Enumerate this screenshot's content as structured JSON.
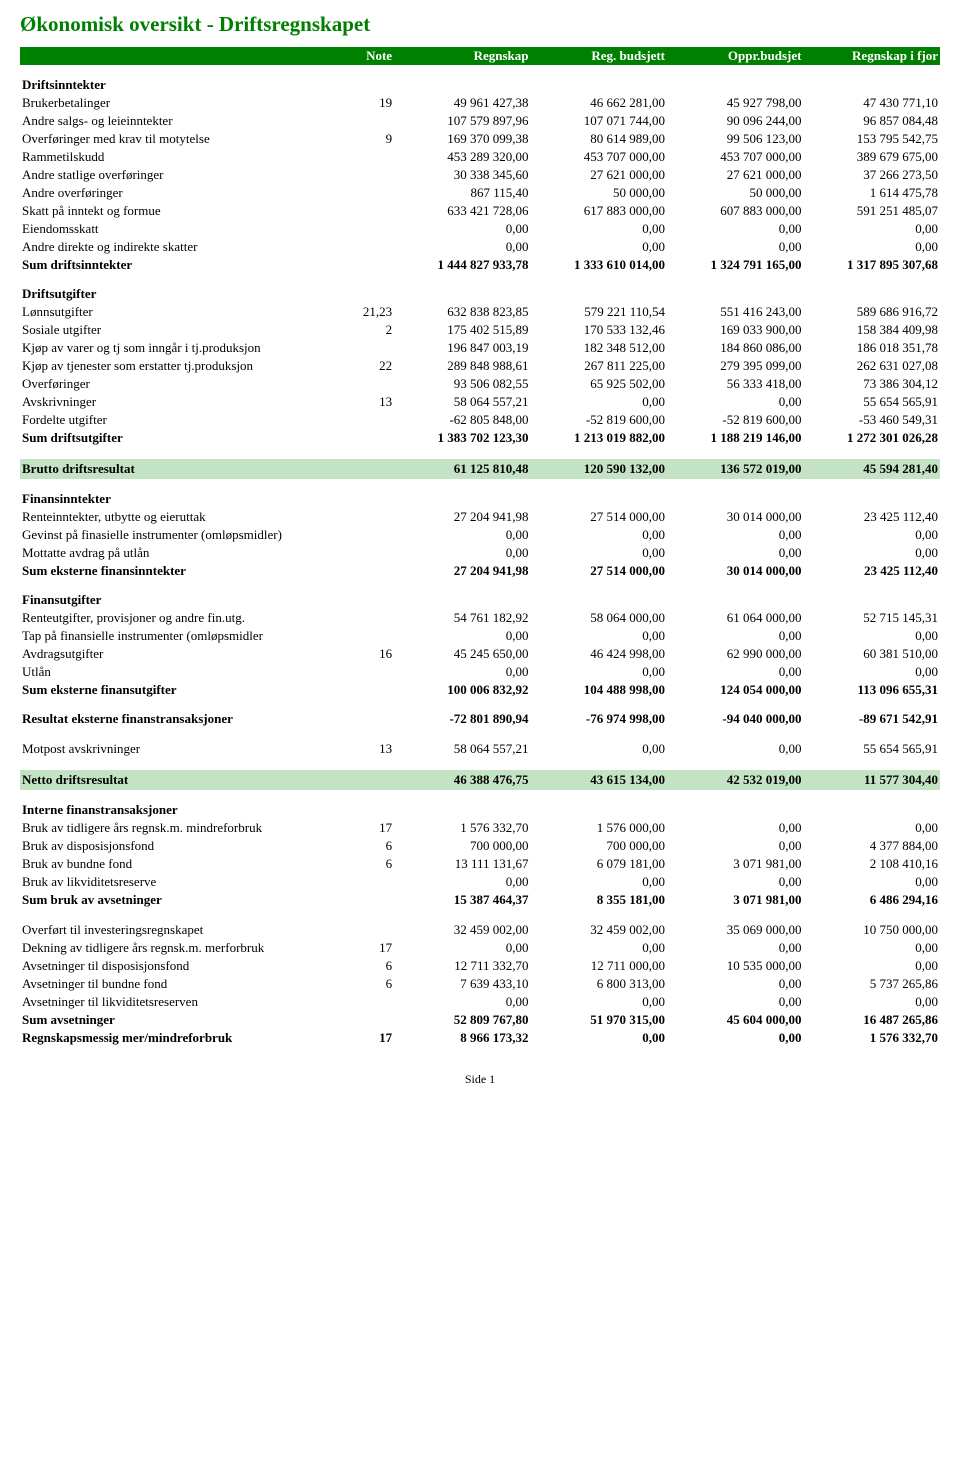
{
  "title": "Økonomisk oversikt - Driftsregnskapet",
  "headers": {
    "note": "Note",
    "c1": "Regnskap",
    "c2": "Reg. budsjett",
    "c3": "Oppr.budsjet",
    "c4": "Regnskap i fjor"
  },
  "colors": {
    "title": "#008000",
    "header_bg": "#008000",
    "header_fg": "#ffffff",
    "highlight_bg": "#c4e2c4"
  },
  "rows": [
    {
      "type": "section",
      "label": "Driftsinntekter"
    },
    {
      "label": "Brukerbetalinger",
      "note": "19",
      "v": [
        "49 961 427,38",
        "46 662 281,00",
        "45 927 798,00",
        "47 430 771,10"
      ]
    },
    {
      "label": "Andre salgs- og leieinntekter",
      "v": [
        "107 579 897,96",
        "107 071 744,00",
        "90 096 244,00",
        "96 857 084,48"
      ]
    },
    {
      "label": "Overføringer med krav til motytelse",
      "note": "9",
      "v": [
        "169 370 099,38",
        "80 614 989,00",
        "99 506 123,00",
        "153 795 542,75"
      ]
    },
    {
      "label": "Rammetilskudd",
      "v": [
        "453 289 320,00",
        "453 707 000,00",
        "453 707 000,00",
        "389 679 675,00"
      ]
    },
    {
      "label": "Andre statlige overføringer",
      "v": [
        "30 338 345,60",
        "27 621 000,00",
        "27 621 000,00",
        "37 266 273,50"
      ]
    },
    {
      "label": "Andre overføringer",
      "v": [
        "867 115,40",
        "50 000,00",
        "50 000,00",
        "1 614 475,78"
      ]
    },
    {
      "label": "Skatt på inntekt og formue",
      "v": [
        "633 421 728,06",
        "617 883 000,00",
        "607 883 000,00",
        "591 251 485,07"
      ]
    },
    {
      "label": "Eiendomsskatt",
      "v": [
        "0,00",
        "0,00",
        "0,00",
        "0,00"
      ]
    },
    {
      "label": "Andre direkte og indirekte skatter",
      "v": [
        "0,00",
        "0,00",
        "0,00",
        "0,00"
      ]
    },
    {
      "type": "bold",
      "label": "Sum driftsinntekter",
      "v": [
        "1 444 827 933,78",
        "1 333 610 014,00",
        "1 324 791 165,00",
        "1 317 895 307,68"
      ]
    },
    {
      "type": "section",
      "label": "Driftsutgifter"
    },
    {
      "label": "Lønnsutgifter",
      "note": "21,23",
      "v": [
        "632 838 823,85",
        "579 221 110,54",
        "551 416 243,00",
        "589 686 916,72"
      ]
    },
    {
      "label": "Sosiale utgifter",
      "note": "2",
      "v": [
        "175 402 515,89",
        "170 533 132,46",
        "169 033 900,00",
        "158 384 409,98"
      ]
    },
    {
      "label": "Kjøp av varer og tj som inngår i tj.produksjon",
      "v": [
        "196 847 003,19",
        "182 348 512,00",
        "184 860 086,00",
        "186 018 351,78"
      ]
    },
    {
      "label": "Kjøp av tjenester som erstatter tj.produksjon",
      "note": "22",
      "v": [
        "289 848 988,61",
        "267 811 225,00",
        "279 395 099,00",
        "262 631 027,08"
      ]
    },
    {
      "label": "Overføringer",
      "v": [
        "93 506 082,55",
        "65 925 502,00",
        "56 333 418,00",
        "73 386 304,12"
      ]
    },
    {
      "label": "Avskrivninger",
      "note": "13",
      "v": [
        "58 064 557,21",
        "0,00",
        "0,00",
        "55 654 565,91"
      ]
    },
    {
      "label": "Fordelte utgifter",
      "v": [
        "-62 805 848,00",
        "-52 819 600,00",
        "-52 819 600,00",
        "-53 460 549,31"
      ]
    },
    {
      "type": "bold",
      "label": "Sum driftsutgifter",
      "v": [
        "1 383 702 123,30",
        "1 213 019 882,00",
        "1 188 219 146,00",
        "1 272 301 026,28"
      ]
    },
    {
      "type": "hl",
      "label": "Brutto driftsresultat",
      "v": [
        "61 125 810,48",
        "120 590 132,00",
        "136 572 019,00",
        "45 594 281,40"
      ]
    },
    {
      "type": "section",
      "label": "Finansinntekter"
    },
    {
      "label": "Renteinntekter, utbytte og eieruttak",
      "v": [
        "27 204 941,98",
        "27 514 000,00",
        "30 014 000,00",
        "23 425 112,40"
      ]
    },
    {
      "label": "Gevinst på finasielle instrumenter (omløpsmidler)",
      "v": [
        "0,00",
        "0,00",
        "0,00",
        "0,00"
      ]
    },
    {
      "label": "Mottatte avdrag på utlån",
      "v": [
        "0,00",
        "0,00",
        "0,00",
        "0,00"
      ]
    },
    {
      "type": "bold",
      "label": "Sum eksterne finansinntekter",
      "v": [
        "27 204 941,98",
        "27 514 000,00",
        "30 014 000,00",
        "23 425 112,40"
      ]
    },
    {
      "type": "section",
      "label": "Finansutgifter"
    },
    {
      "label": "Renteutgifter, provisjoner og andre fin.utg.",
      "v": [
        "54 761 182,92",
        "58 064 000,00",
        "61 064 000,00",
        "52 715 145,31"
      ]
    },
    {
      "label": "Tap på finansielle instrumenter (omløpsmidler",
      "v": [
        "0,00",
        "0,00",
        "0,00",
        "0,00"
      ]
    },
    {
      "label": "Avdragsutgifter",
      "note": "16",
      "v": [
        "45 245 650,00",
        "46 424 998,00",
        "62 990 000,00",
        "60 381 510,00"
      ]
    },
    {
      "label": "Utlån",
      "v": [
        "0,00",
        "0,00",
        "0,00",
        "0,00"
      ]
    },
    {
      "type": "bold",
      "label": "Sum eksterne finansutgifter",
      "v": [
        "100 006 832,92",
        "104 488 998,00",
        "124 054 000,00",
        "113 096 655,31"
      ]
    },
    {
      "type": "section-bold",
      "label": "Resultat eksterne finanstransaksjoner",
      "v": [
        "-72 801 890,94",
        "-76 974 998,00",
        "-94 040 000,00",
        "-89 671 542,91"
      ]
    },
    {
      "type": "spacer"
    },
    {
      "label": "Motpost avskrivninger",
      "note": "13",
      "v": [
        "58 064 557,21",
        "0,00",
        "0,00",
        "55 654 565,91"
      ]
    },
    {
      "type": "hl",
      "label": "Netto driftsresultat",
      "v": [
        "46 388 476,75",
        "43 615 134,00",
        "42 532 019,00",
        "11 577 304,40"
      ]
    },
    {
      "type": "section",
      "label": "Interne finanstransaksjoner"
    },
    {
      "label": "Bruk av tidligere års regnsk.m. mindreforbruk",
      "note": "17",
      "v": [
        "1 576 332,70",
        "1 576 000,00",
        "0,00",
        "0,00"
      ]
    },
    {
      "label": "Bruk av disposisjonsfond",
      "note": "6",
      "v": [
        "700 000,00",
        "700 000,00",
        "0,00",
        "4 377 884,00"
      ]
    },
    {
      "label": "Bruk av bundne fond",
      "note": "6",
      "v": [
        "13 111 131,67",
        "6 079 181,00",
        "3 071 981,00",
        "2 108 410,16"
      ]
    },
    {
      "label": "Bruk av likviditetsreserve",
      "v": [
        "0,00",
        "0,00",
        "0,00",
        "0,00"
      ]
    },
    {
      "type": "bold",
      "label": "Sum bruk av avsetninger",
      "v": [
        "15 387 464,37",
        "8 355 181,00",
        "3 071 981,00",
        "6 486 294,16"
      ]
    },
    {
      "type": "spacer"
    },
    {
      "label": "Overført til investeringsregnskapet",
      "v": [
        "32 459 002,00",
        "32 459 002,00",
        "35 069 000,00",
        "10 750 000,00"
      ]
    },
    {
      "label": "Dekning av tidligere års regnsk.m. merforbruk",
      "note": "17",
      "v": [
        "0,00",
        "0,00",
        "0,00",
        "0,00"
      ]
    },
    {
      "label": "Avsetninger til disposisjonsfond",
      "note": "6",
      "v": [
        "12 711 332,70",
        "12 711 000,00",
        "10 535 000,00",
        "0,00"
      ]
    },
    {
      "label": "Avsetninger til bundne fond",
      "note": "6",
      "v": [
        "7 639 433,10",
        "6 800 313,00",
        "0,00",
        "5 737 265,86"
      ]
    },
    {
      "label": "Avsetninger til likviditetsreserven",
      "v": [
        "0,00",
        "0,00",
        "0,00",
        "0,00"
      ]
    },
    {
      "type": "bold",
      "label": "Sum avsetninger",
      "v": [
        "52 809 767,80",
        "51 970 315,00",
        "45 604 000,00",
        "16 487 265,86"
      ]
    },
    {
      "type": "bold",
      "label": "Regnskapsmessig mer/mindreforbruk",
      "note": "17",
      "v": [
        "8 966 173,32",
        "0,00",
        "0,00",
        "1 576 332,70"
      ]
    }
  ],
  "footer": "Side 1"
}
